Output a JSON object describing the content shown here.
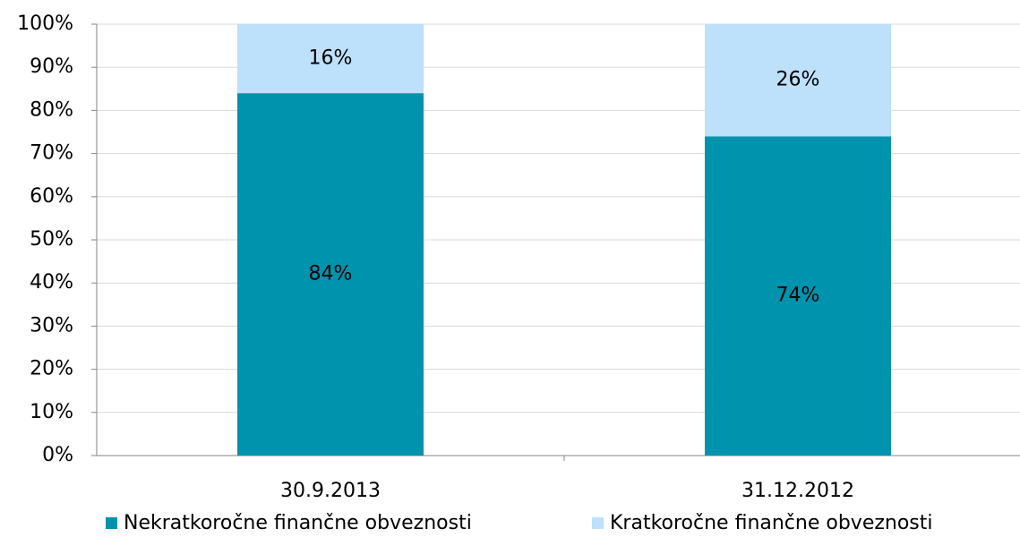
{
  "chart_data": {
    "type": "stacked_bar",
    "categories": [
      "30.9.2013",
      "31.12.2012"
    ],
    "series": [
      {
        "name": "Nekratkoročne finančne obveznosti",
        "color": "#0093ad",
        "values": [
          84,
          74
        ],
        "value_labels": [
          "84%",
          "74%"
        ]
      },
      {
        "name": "Kratkoročne finančne obveznosti",
        "color": "#bde0fb",
        "values": [
          16,
          26
        ],
        "value_labels": [
          "16%",
          "26%"
        ]
      }
    ],
    "ylim": [
      0,
      100
    ],
    "yticks": [
      {
        "value": 0,
        "label": "0%"
      },
      {
        "value": 10,
        "label": "10%"
      },
      {
        "value": 20,
        "label": "20%"
      },
      {
        "value": 30,
        "label": "30%"
      },
      {
        "value": 40,
        "label": "40%"
      },
      {
        "value": 50,
        "label": "50%"
      },
      {
        "value": 60,
        "label": "60%"
      },
      {
        "value": 70,
        "label": "70%"
      },
      {
        "value": 80,
        "label": "80%"
      },
      {
        "value": 90,
        "label": "90%"
      },
      {
        "value": 100,
        "label": "100%"
      }
    ],
    "grid": true,
    "legend": "bottom"
  }
}
